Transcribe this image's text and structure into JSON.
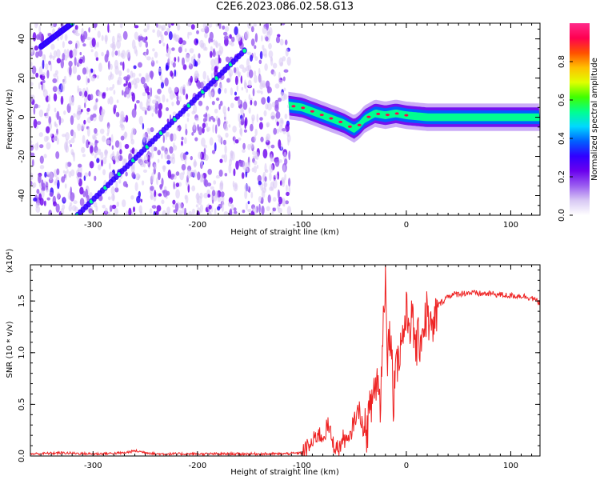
{
  "page": {
    "title": "C2E6.2023.086.02.58.G13"
  },
  "chart_data": [
    {
      "type": "heatmap",
      "title": "",
      "xlabel": "Height of straight line (km)",
      "ylabel": "Frequency (Hz)",
      "xlim": [
        -360,
        128
      ],
      "ylim": [
        -50,
        48
      ],
      "xticks": [
        -300,
        -200,
        -100,
        0,
        100
      ],
      "yticks": [
        -40,
        -20,
        0,
        20,
        40
      ],
      "colorbar": {
        "label": "Normalized spectral amplitude",
        "range": [
          0.0,
          1.0
        ],
        "ticks": [
          "0.0",
          "0.2",
          "0.4",
          "0.6",
          "0.8"
        ],
        "colormap": [
          "#ffffff",
          "#d8c8f4",
          "#9a5cf0",
          "#6a00ee",
          "#3000ff",
          "#0060ff",
          "#00d8ff",
          "#00ff90",
          "#40ff00",
          "#e0ff00",
          "#ffc000",
          "#ff5000",
          "#ff0050",
          "#ff2a8a"
        ]
      },
      "features": {
        "tracking_line": {
          "x": [
            -315,
            -155
          ],
          "y": [
            -50,
            34
          ],
          "amplitude": 0.35
        },
        "early_line": {
          "x": [
            -350,
            -320
          ],
          "y": [
            36,
            48
          ],
          "amplitude": 0.3
        },
        "open_loop_signal": {
          "x": [
            -113,
            -100,
            -90,
            -80,
            -70,
            -60,
            -50,
            -45,
            -40,
            -30,
            -20,
            -10,
            0,
            20,
            60,
            100,
            128
          ],
          "y": [
            6,
            5,
            3,
            1,
            -1,
            -3,
            -6,
            -4,
            -1,
            2,
            1,
            2,
            1,
            0,
            0,
            0,
            0
          ],
          "amplitude": 0.6
        }
      }
    },
    {
      "type": "line",
      "title": "",
      "xlabel": "Height of straight line (km)",
      "ylabel": "SNR (10 * v/v)",
      "multiplier": "(x10⁴)",
      "xlim": [
        -360,
        128
      ],
      "ylim": [
        0.0,
        1.85
      ],
      "xticks": [
        -300,
        -200,
        -100,
        0,
        100
      ],
      "yticks": [
        "0.0",
        "0.5",
        "1.0",
        "1.5"
      ],
      "line_color": "#ee2222",
      "series": [
        {
          "x": [
            -360,
            -330,
            -300,
            -270,
            -260,
            -240,
            -200,
            -150,
            -120,
            -100,
            -95,
            -90,
            -85,
            -80,
            -75,
            -70,
            -65,
            -60,
            -55,
            -50,
            -45,
            -40,
            -35,
            -32,
            -28,
            -25,
            -22,
            -20,
            -18,
            -15,
            -12,
            -10,
            -8,
            -5,
            0,
            5,
            10,
            15,
            20,
            25,
            30,
            35,
            40,
            50,
            60,
            70,
            80,
            90,
            100,
            110,
            120,
            128
          ],
          "y": [
            0.02,
            0.03,
            0.02,
            0.03,
            0.05,
            0.02,
            0.02,
            0.02,
            0.02,
            0.03,
            0.08,
            0.12,
            0.22,
            0.18,
            0.3,
            0.12,
            0.06,
            0.18,
            0.12,
            0.35,
            0.45,
            0.2,
            0.4,
            0.6,
            0.75,
            0.5,
            1.3,
            1.82,
            1.0,
            1.25,
            0.45,
            1.15,
            0.9,
            1.1,
            1.35,
            1.3,
            1.05,
            1.2,
            1.4,
            1.15,
            1.45,
            1.5,
            1.55,
            1.57,
            1.58,
            1.57,
            1.57,
            1.56,
            1.55,
            1.55,
            1.53,
            1.48
          ]
        }
      ]
    }
  ]
}
